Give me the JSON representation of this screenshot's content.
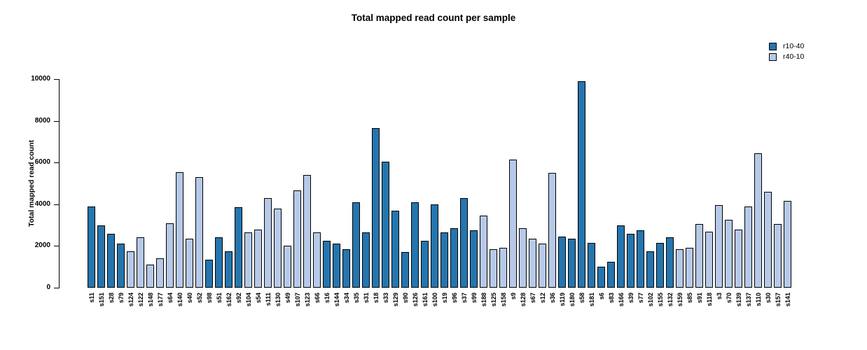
{
  "chart_data": {
    "type": "bar",
    "title": "Total mapped read count per sample",
    "xlabel": "",
    "ylabel": "Total mapped read count",
    "ylim": [
      0,
      10000
    ],
    "yticks": [
      0,
      2000,
      4000,
      6000,
      8000,
      10000
    ],
    "grid": false,
    "legend_position": "top-right",
    "legend": [
      {
        "name": "r10-40",
        "color": "#2575ae"
      },
      {
        "name": "r40-10",
        "color": "#b6cae8"
      }
    ],
    "samples": [
      {
        "label": "s11",
        "group": "r10-40",
        "value": 3900
      },
      {
        "label": "s151",
        "group": "r10-40",
        "value": 3000
      },
      {
        "label": "s28",
        "group": "r10-40",
        "value": 2600
      },
      {
        "label": "s79",
        "group": "r10-40",
        "value": 2100
      },
      {
        "label": "s124",
        "group": "r40-10",
        "value": 1750
      },
      {
        "label": "s122",
        "group": "r40-10",
        "value": 2400
      },
      {
        "label": "s148",
        "group": "r40-10",
        "value": 1100
      },
      {
        "label": "s177",
        "group": "r40-10",
        "value": 1400
      },
      {
        "label": "s64",
        "group": "r40-10",
        "value": 3100
      },
      {
        "label": "s140",
        "group": "r40-10",
        "value": 5550
      },
      {
        "label": "s40",
        "group": "r40-10",
        "value": 2350
      },
      {
        "label": "s52",
        "group": "r40-10",
        "value": 5300
      },
      {
        "label": "s98",
        "group": "r10-40",
        "value": 1350
      },
      {
        "label": "s51",
        "group": "r10-40",
        "value": 2400
      },
      {
        "label": "s162",
        "group": "r10-40",
        "value": 1750
      },
      {
        "label": "s92",
        "group": "r10-40",
        "value": 3850
      },
      {
        "label": "s104",
        "group": "r40-10",
        "value": 2650
      },
      {
        "label": "s54",
        "group": "r40-10",
        "value": 2800
      },
      {
        "label": "s111",
        "group": "r40-10",
        "value": 4300
      },
      {
        "label": "s130",
        "group": "r40-10",
        "value": 3800
      },
      {
        "label": "s49",
        "group": "r40-10",
        "value": 2000
      },
      {
        "label": "s107",
        "group": "r40-10",
        "value": 4650
      },
      {
        "label": "s123",
        "group": "r40-10",
        "value": 5400
      },
      {
        "label": "s66",
        "group": "r40-10",
        "value": 2650
      },
      {
        "label": "s16",
        "group": "r10-40",
        "value": 2250
      },
      {
        "label": "s144",
        "group": "r10-40",
        "value": 2100
      },
      {
        "label": "s34",
        "group": "r10-40",
        "value": 1850
      },
      {
        "label": "s35",
        "group": "r10-40",
        "value": 4100
      },
      {
        "label": "s31",
        "group": "r10-40",
        "value": 2650
      },
      {
        "label": "s18",
        "group": "r10-40",
        "value": 7650
      },
      {
        "label": "s33",
        "group": "r10-40",
        "value": 6050
      },
      {
        "label": "s129",
        "group": "r10-40",
        "value": 3700
      },
      {
        "label": "s90",
        "group": "r10-40",
        "value": 1700
      },
      {
        "label": "s126",
        "group": "r10-40",
        "value": 4100
      },
      {
        "label": "s161",
        "group": "r10-40",
        "value": 2250
      },
      {
        "label": "s100",
        "group": "r10-40",
        "value": 4000
      },
      {
        "label": "s19",
        "group": "r10-40",
        "value": 2650
      },
      {
        "label": "s96",
        "group": "r10-40",
        "value": 2850
      },
      {
        "label": "s37",
        "group": "r10-40",
        "value": 4300
      },
      {
        "label": "s99",
        "group": "r10-40",
        "value": 2750
      },
      {
        "label": "s188",
        "group": "r40-10",
        "value": 3450
      },
      {
        "label": "s125",
        "group": "r40-10",
        "value": 1850
      },
      {
        "label": "s158",
        "group": "r40-10",
        "value": 1900
      },
      {
        "label": "s9",
        "group": "r40-10",
        "value": 6150
      },
      {
        "label": "s128",
        "group": "r40-10",
        "value": 2850
      },
      {
        "label": "s67",
        "group": "r40-10",
        "value": 2350
      },
      {
        "label": "s12",
        "group": "r40-10",
        "value": 2100
      },
      {
        "label": "s36",
        "group": "r40-10",
        "value": 5500
      },
      {
        "label": "s119",
        "group": "r10-40",
        "value": 2450
      },
      {
        "label": "s180",
        "group": "r10-40",
        "value": 2350
      },
      {
        "label": "s58",
        "group": "r10-40",
        "value": 9900
      },
      {
        "label": "s181",
        "group": "r10-40",
        "value": 2150
      },
      {
        "label": "s6",
        "group": "r10-40",
        "value": 1000
      },
      {
        "label": "s83",
        "group": "r10-40",
        "value": 1250
      },
      {
        "label": "s166",
        "group": "r10-40",
        "value": 3000
      },
      {
        "label": "s39",
        "group": "r10-40",
        "value": 2600
      },
      {
        "label": "s77",
        "group": "r10-40",
        "value": 2750
      },
      {
        "label": "s102",
        "group": "r10-40",
        "value": 1750
      },
      {
        "label": "s155",
        "group": "r10-40",
        "value": 2150
      },
      {
        "label": "s132",
        "group": "r10-40",
        "value": 2400
      },
      {
        "label": "s159",
        "group": "r40-10",
        "value": 1850
      },
      {
        "label": "s85",
        "group": "r40-10",
        "value": 1900
      },
      {
        "label": "s91",
        "group": "r40-10",
        "value": 3050
      },
      {
        "label": "s118",
        "group": "r40-10",
        "value": 2700
      },
      {
        "label": "s3",
        "group": "r40-10",
        "value": 3950
      },
      {
        "label": "s70",
        "group": "r40-10",
        "value": 3250
      },
      {
        "label": "s139",
        "group": "r40-10",
        "value": 2800
      },
      {
        "label": "s137",
        "group": "r40-10",
        "value": 3900
      },
      {
        "label": "s110",
        "group": "r40-10",
        "value": 6450
      },
      {
        "label": "s30",
        "group": "r40-10",
        "value": 4600
      },
      {
        "label": "s157",
        "group": "r40-10",
        "value": 3050
      },
      {
        "label": "s141",
        "group": "r40-10",
        "value": 4150
      }
    ]
  }
}
